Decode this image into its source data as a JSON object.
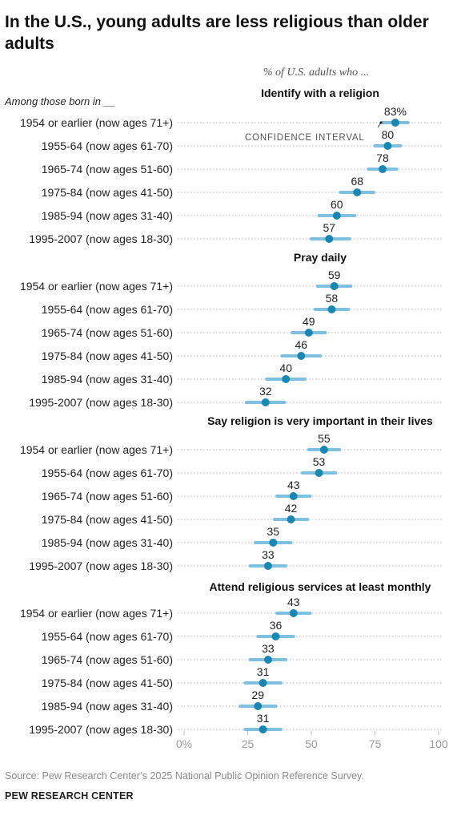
{
  "title": "In the U.S., young adults are less religious than older adults",
  "subtitle": "% of U.S. adults who ...",
  "row_header": "Among those born in __",
  "ci_label": "CONFIDENCE INTERVAL",
  "source": "Source: Pew Research Center’s 2025 National Public Opinion Reference Survey.",
  "brand": "PEW RESEARCH CENTER",
  "colors": {
    "dot": "#1a87b3",
    "ci": "#7fbfe0",
    "dotted": "#b5b5b5",
    "text": "#222222",
    "axis_text": "#9a9a9a"
  },
  "chart_data": {
    "type": "scatter",
    "x_axis": {
      "min": 0,
      "max": 100,
      "ticks": [
        "0%",
        "25",
        "50",
        "75",
        "100"
      ]
    },
    "categories": [
      "1954 or earlier (now ages 71+)",
      "1955-64 (now ages 61-70)",
      "1965-74 (now ages 51-60)",
      "1975-84 (now ages 41-50)",
      "1985-94 (now ages 31-40)",
      "1995-2007 (now ages 18-30)"
    ],
    "panels": [
      {
        "title": "Identify with a religion",
        "labels": [
          "83%",
          "80",
          "78",
          "68",
          "60",
          "57"
        ],
        "values": [
          83,
          80,
          78,
          68,
          60,
          57
        ],
        "ci_low": [
          78,
          75,
          72.5,
          61.5,
          53,
          50
        ],
        "ci_high": [
          88,
          85,
          83.5,
          74.5,
          67,
          65
        ]
      },
      {
        "title": "Pray daily",
        "labels": [
          "59",
          "58",
          "49",
          "46",
          "40",
          "32"
        ],
        "values": [
          59,
          58,
          49,
          46,
          40,
          32
        ],
        "ci_low": [
          52.5,
          51.5,
          42.5,
          38.5,
          32.5,
          24.5
        ],
        "ci_high": [
          65.5,
          64.5,
          55.5,
          53.5,
          47.5,
          39.5
        ]
      },
      {
        "title": "Say religion is very important in their lives",
        "labels": [
          "55",
          "53",
          "43",
          "42",
          "35",
          "33"
        ],
        "values": [
          55,
          53,
          43,
          42,
          35,
          33
        ],
        "ci_low": [
          49,
          46.5,
          36.5,
          35.5,
          28,
          26
        ],
        "ci_high": [
          61,
          59.5,
          49.5,
          48.5,
          42,
          40
        ]
      },
      {
        "title": "Attend religious services at least monthly",
        "labels": [
          "43",
          "36",
          "33",
          "31",
          "29",
          "31"
        ],
        "values": [
          43,
          36,
          33,
          31,
          29,
          31
        ],
        "ci_low": [
          36.5,
          29,
          26,
          24,
          22,
          24
        ],
        "ci_high": [
          49.5,
          43,
          40,
          38,
          36,
          38
        ]
      }
    ]
  }
}
